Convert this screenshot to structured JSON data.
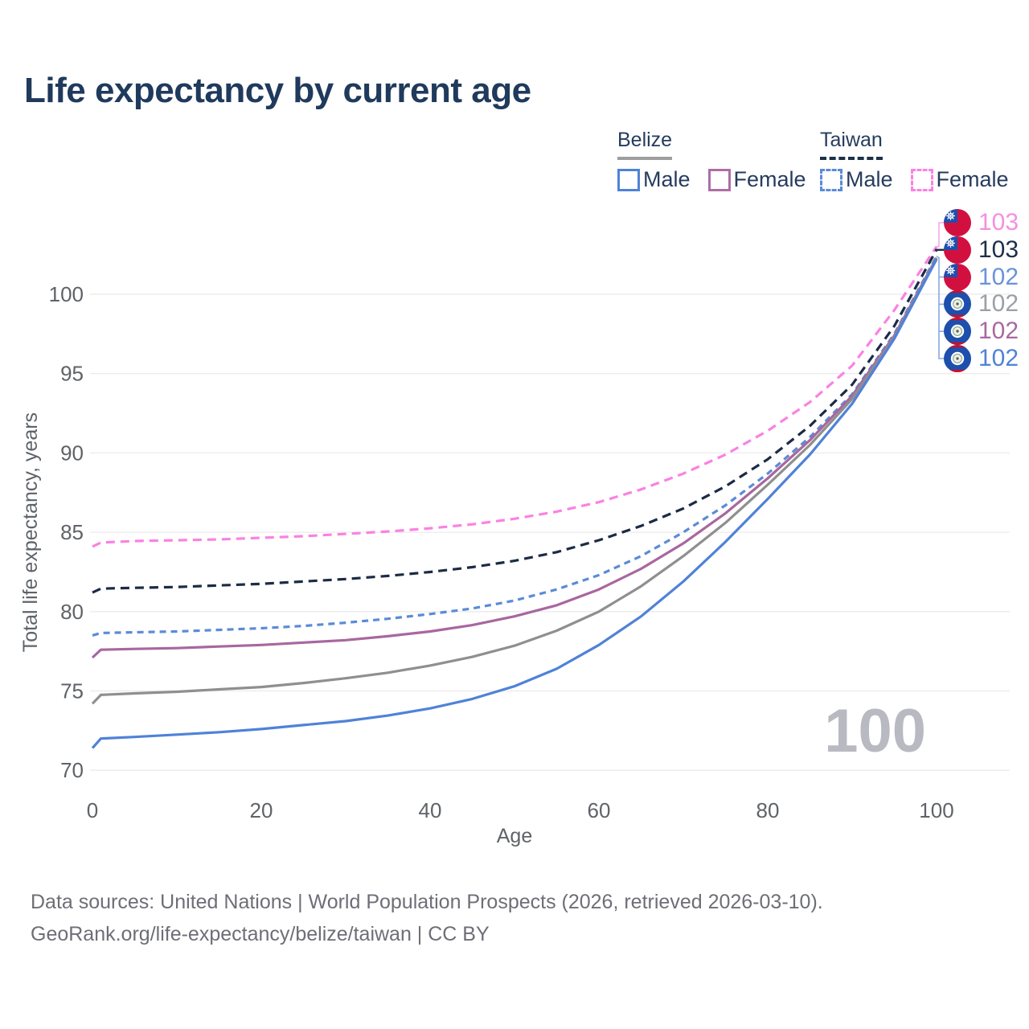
{
  "title": "Life expectancy by current age",
  "legend": {
    "groups": [
      {
        "label": "Belize",
        "line_style": "solid",
        "underline_color": "#9e9e9e",
        "items": [
          {
            "label": "Male",
            "color": "#4f82d8"
          },
          {
            "label": "Female",
            "color": "#ad6ea6"
          }
        ]
      },
      {
        "label": "Taiwan",
        "line_style": "dashed",
        "underline_color": "#1d3049",
        "items": [
          {
            "label": "Male",
            "color": "#5b8bd8"
          },
          {
            "label": "Female",
            "color": "#fa82e2"
          }
        ]
      }
    ]
  },
  "end_labels": [
    {
      "value": "103",
      "country": "taiwan",
      "series": "Taiwan Female",
      "color": "#f48fe3"
    },
    {
      "value": "103",
      "country": "taiwan",
      "series": "Taiwan Total",
      "color": "#1d2f49"
    },
    {
      "value": "102",
      "country": "taiwan",
      "series": "Taiwan Male",
      "color": "#6b93d9"
    },
    {
      "value": "102",
      "country": "belize",
      "series": "Belize Total",
      "color": "#9ba0a6"
    },
    {
      "value": "102",
      "country": "belize",
      "series": "Belize Female",
      "color": "#a7699f"
    },
    {
      "value": "102",
      "country": "belize",
      "series": "Belize Male",
      "color": "#4f82d8"
    }
  ],
  "watermark": "100",
  "footer": {
    "line1": "Data sources: United Nations | World Population Prospects (2026, retrieved 2026-03-10).",
    "line2": "GeoRank.org/life-expectancy/belize/taiwan | CC BY"
  },
  "chart_data": {
    "type": "line",
    "title": "Life expectancy by current age",
    "xlabel": "Age",
    "ylabel": "Total life expectancy, years",
    "x_ticks": [
      0,
      20,
      40,
      60,
      80,
      100
    ],
    "y_ticks": [
      70,
      75,
      80,
      85,
      90,
      95,
      100
    ],
    "xlim": [
      0,
      100
    ],
    "ylim": [
      69,
      104
    ],
    "grid": true,
    "legend_position": "top-right",
    "ages": [
      0,
      1,
      5,
      10,
      15,
      20,
      25,
      30,
      35,
      40,
      45,
      50,
      55,
      60,
      65,
      70,
      75,
      80,
      85,
      90,
      95,
      100
    ],
    "series": [
      {
        "name": "Taiwan Female",
        "country": "Taiwan",
        "sex": "Female",
        "color": "#fa82e2",
        "dash": "11 7",
        "values": [
          84.1,
          84.35,
          84.45,
          84.5,
          84.55,
          84.65,
          84.75,
          84.9,
          85.05,
          85.25,
          85.5,
          85.85,
          86.3,
          86.9,
          87.7,
          88.7,
          89.9,
          91.4,
          93.2,
          95.5,
          99.0,
          103.0
        ]
      },
      {
        "name": "Taiwan Total",
        "country": "Taiwan",
        "sex": "Total",
        "color": "#1c2b45",
        "dash": "11 7",
        "values": [
          81.2,
          81.45,
          81.5,
          81.55,
          81.65,
          81.75,
          81.9,
          82.05,
          82.25,
          82.5,
          82.8,
          83.2,
          83.75,
          84.5,
          85.4,
          86.5,
          87.9,
          89.6,
          91.7,
          94.3,
          98.0,
          102.8
        ]
      },
      {
        "name": "Taiwan Male",
        "country": "Taiwan",
        "sex": "Male",
        "color": "#5b8bd8",
        "dash": "8 6",
        "values": [
          78.5,
          78.65,
          78.7,
          78.75,
          78.85,
          78.95,
          79.1,
          79.3,
          79.55,
          79.85,
          80.2,
          80.7,
          81.4,
          82.3,
          83.5,
          85.0,
          86.7,
          88.7,
          91.0,
          93.7,
          97.5,
          102.4
        ]
      },
      {
        "name": "Belize Female",
        "country": "Belize",
        "sex": "Female",
        "color": "#a8679f",
        "dash": "",
        "values": [
          77.1,
          77.6,
          77.65,
          77.7,
          77.8,
          77.9,
          78.05,
          78.2,
          78.45,
          78.75,
          79.15,
          79.7,
          80.4,
          81.4,
          82.7,
          84.3,
          86.2,
          88.4,
          90.8,
          93.6,
          97.4,
          102.3
        ]
      },
      {
        "name": "Belize Total",
        "country": "Belize",
        "sex": "Total",
        "color": "#8f8f8f",
        "dash": "",
        "values": [
          74.2,
          74.75,
          74.85,
          74.95,
          75.1,
          75.25,
          75.5,
          75.8,
          76.15,
          76.6,
          77.15,
          77.85,
          78.8,
          80.0,
          81.6,
          83.5,
          85.6,
          88.0,
          90.5,
          93.4,
          97.3,
          102.25
        ]
      },
      {
        "name": "Belize Male",
        "country": "Belize",
        "sex": "Male",
        "color": "#4f82d8",
        "dash": "",
        "values": [
          71.4,
          72.0,
          72.1,
          72.25,
          72.4,
          72.6,
          72.85,
          73.1,
          73.45,
          73.9,
          74.5,
          75.3,
          76.4,
          77.9,
          79.7,
          81.9,
          84.4,
          87.1,
          89.9,
          93.1,
          97.2,
          102.2
        ]
      }
    ]
  }
}
